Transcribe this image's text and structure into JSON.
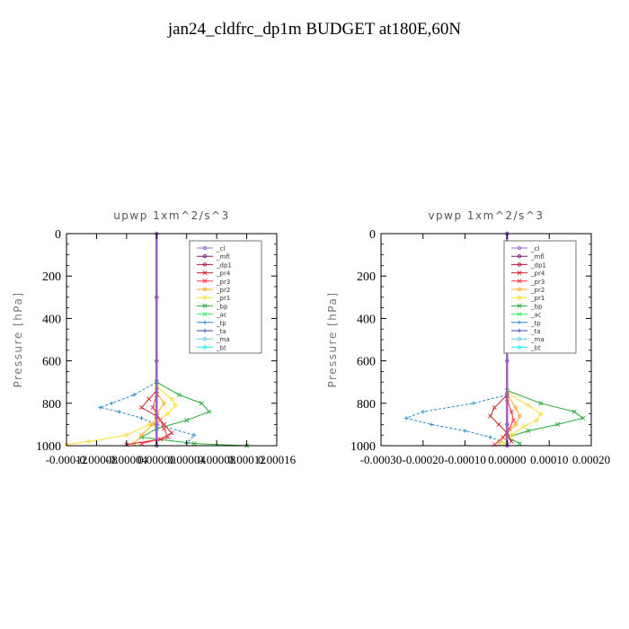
{
  "page": {
    "title": "jan24_cldfrc_dp1m  BUDGET at180E,60N"
  },
  "colors": {
    "_cl": "#9966cc",
    "_mfl": "#7a1a7a",
    "_dp1": "#b0103a",
    "_pr4": "#cc2222",
    "_pr3": "#ff3344",
    "_pr2": "#ffaa22",
    "_pr1": "#ffdd33",
    "_bp": "#22aa33",
    "_ac": "#33ee66",
    "_tp": "#2288cc",
    "_ta": "#3344aa",
    "_ma": "#66ccee",
    "_bt": "#22eeee"
  },
  "chart_data": [
    {
      "type": "line",
      "title": "upwp  1xm^2/s^3",
      "ylabel": "Pressure [hPa]",
      "xlabel": "",
      "xlim": [
        -0.00012,
        0.00016
      ],
      "ylim": [
        1000,
        0
      ],
      "xticks": [
        -0.00012,
        -8e-05,
        -4e-05,
        0.0,
        4e-05,
        8e-05,
        0.00012,
        0.00016
      ],
      "xtick_labels": [
        "-0.00012",
        "-0.00008",
        "-0.00004",
        "0.00000",
        "0.00004",
        "0.00008",
        "0.00012",
        "0.00016"
      ],
      "yticks": [
        0,
        200,
        400,
        600,
        800,
        1000
      ],
      "ytick_labels": [
        "0",
        "200",
        "400",
        "600",
        "800",
        "1000"
      ],
      "legend": {
        "position": "top-right",
        "entries": [
          "_cl",
          "_mfl",
          "_dp1",
          "_pr4",
          "_pr3",
          "_pr2",
          "_pr1",
          "_bp",
          "_ac",
          "_tp",
          "_ta",
          "_ma",
          "_bt"
        ]
      },
      "series": [
        {
          "name": "_tp",
          "p": [
            700,
            760,
            800,
            820,
            840,
            870,
            900,
            950,
            990
          ],
          "v": [
            0.0,
            -3e-05,
            -6e-05,
            -7.5e-05,
            -5e-05,
            -2e-05,
            0.0,
            5e-05,
            4e-05
          ]
        },
        {
          "name": "_bp",
          "p": [
            700,
            760,
            800,
            840,
            880,
            920,
            960,
            990,
            1000
          ],
          "v": [
            0.0,
            3e-05,
            6e-05,
            7e-05,
            4e-05,
            0.0,
            -2e-05,
            5e-05,
            0.00012
          ]
        },
        {
          "name": "_pr1",
          "p": [
            720,
            780,
            810,
            850,
            900,
            950,
            980,
            995
          ],
          "v": [
            0.0,
            2e-05,
            2.5e-05,
            1.5e-05,
            -1e-05,
            -4e-05,
            -9e-05,
            -0.00012
          ]
        },
        {
          "name": "_pr2",
          "p": [
            750,
            800,
            850,
            900,
            950,
            990
          ],
          "v": [
            0.0,
            1e-05,
            0.0,
            -5e-06,
            -2e-05,
            -3e-05
          ]
        },
        {
          "name": "_pr4",
          "p": [
            740,
            780,
            820,
            860,
            900,
            940,
            970,
            995
          ],
          "v": [
            0.0,
            -1e-05,
            -2e-05,
            0.0,
            1e-05,
            2e-05,
            5e-06,
            -4e-05
          ]
        },
        {
          "name": "_pr3",
          "p": [
            760,
            820,
            880,
            920,
            960,
            990
          ],
          "v": [
            0.0,
            -5e-06,
            5e-06,
            1e-05,
            1.5e-05,
            -2e-05
          ]
        },
        {
          "name": "_dp1",
          "p": [
            0,
            300,
            600,
            900,
            1000
          ],
          "v": [
            0.0,
            0.0,
            0.0,
            0.0,
            0.0
          ]
        },
        {
          "name": "_mfl",
          "p": [
            0,
            300,
            600,
            900,
            1000
          ],
          "v": [
            0.0,
            0.0,
            0.0,
            0.0,
            0.0
          ]
        },
        {
          "name": "_cl",
          "p": [
            0,
            300,
            600,
            900,
            1000
          ],
          "v": [
            0.0,
            0.0,
            0.0,
            0.0,
            0.0
          ]
        }
      ]
    },
    {
      "type": "line",
      "title": "vpwp  1xm^2/s^3",
      "ylabel": "Pressure [hPa]",
      "xlabel": "",
      "xlim": [
        -0.0003,
        0.0002
      ],
      "ylim": [
        1000,
        0
      ],
      "xticks": [
        -0.0003,
        -0.0002,
        -0.0001,
        0.0,
        0.0001,
        0.0002
      ],
      "xtick_labels": [
        "-0.00030",
        "-0.00020",
        "-0.00010",
        "0.00000",
        "0.00010",
        "0.00020"
      ],
      "yticks": [
        0,
        200,
        400,
        600,
        800,
        1000
      ],
      "ytick_labels": [
        "0",
        "200",
        "400",
        "600",
        "800",
        "1000"
      ],
      "legend": {
        "position": "top-right",
        "entries": [
          "_cl",
          "_mfl",
          "_dp1",
          "_pr4",
          "_pr3",
          "_pr2",
          "_pr1",
          "_bp",
          "_ac",
          "_tp",
          "_ta",
          "_ma",
          "_bt"
        ]
      },
      "series": [
        {
          "name": "_tp",
          "p": [
            760,
            800,
            840,
            870,
            900,
            930,
            960,
            990
          ],
          "v": [
            0.0,
            -8e-05,
            -0.0002,
            -0.00024,
            -0.00018,
            -0.0001,
            -4e-05,
            0.0
          ]
        },
        {
          "name": "_bp",
          "p": [
            740,
            800,
            840,
            870,
            900,
            930,
            960,
            990
          ],
          "v": [
            0.0,
            8e-05,
            0.00016,
            0.00018,
            0.00012,
            5e-05,
            0.0,
            3e-05
          ]
        },
        {
          "name": "_pr1",
          "p": [
            750,
            810,
            850,
            880,
            910,
            950,
            990
          ],
          "v": [
            0.0,
            5e-05,
            8e-05,
            7e-05,
            4e-05,
            1e-05,
            -1e-05
          ]
        },
        {
          "name": "_pr2",
          "p": [
            760,
            820,
            860,
            900,
            940,
            990
          ],
          "v": [
            0.0,
            2e-05,
            3e-05,
            2e-05,
            0.0,
            -2e-05
          ]
        },
        {
          "name": "_pr4",
          "p": [
            760,
            820,
            860,
            900,
            940,
            980
          ],
          "v": [
            0.0,
            -3e-05,
            -4e-05,
            -2e-05,
            0.0,
            1e-05
          ]
        },
        {
          "name": "_pr3",
          "p": [
            780,
            840,
            880,
            920,
            960,
            995
          ],
          "v": [
            0.0,
            1e-05,
            1.5e-05,
            5e-06,
            -1e-05,
            -3e-05
          ]
        },
        {
          "name": "_dp1",
          "p": [
            0,
            300,
            600,
            900,
            1000
          ],
          "v": [
            0.0,
            0.0,
            0.0,
            0.0,
            0.0
          ]
        },
        {
          "name": "_mfl",
          "p": [
            0,
            300,
            600,
            900,
            1000
          ],
          "v": [
            0.0,
            0.0,
            0.0,
            0.0,
            0.0
          ]
        },
        {
          "name": "_cl",
          "p": [
            0,
            300,
            600,
            900,
            1000
          ],
          "v": [
            0.0,
            0.0,
            0.0,
            0.0,
            0.0
          ]
        }
      ]
    }
  ]
}
